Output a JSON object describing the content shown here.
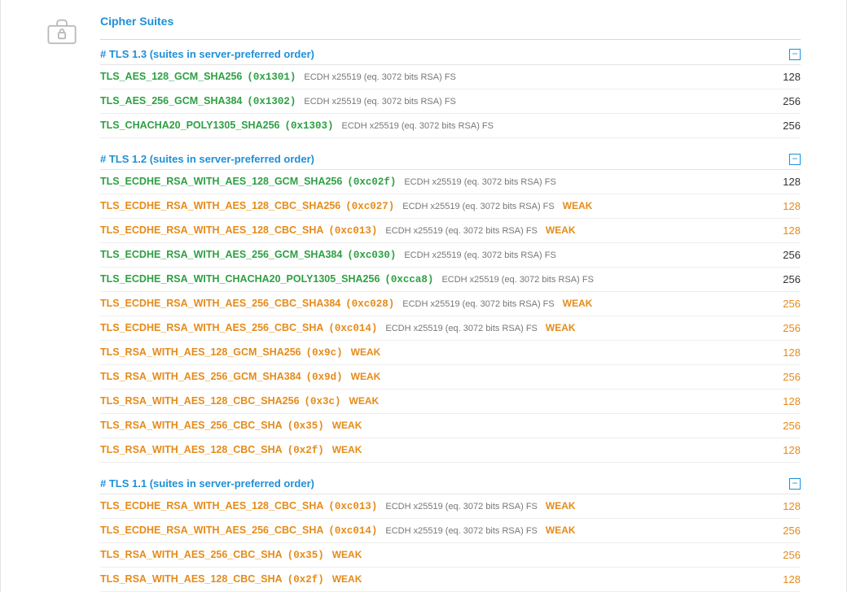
{
  "colors": {
    "link_blue": "#1e90d8",
    "green": "#2ea043",
    "orange": "#e58b1a",
    "text": "#333333",
    "meta_gray": "#777777",
    "border": "#e3e3e3",
    "icon_gray": "#b8b8b8"
  },
  "section_title": "Cipher Suites",
  "weak_label": "WEAK",
  "groups": [
    {
      "id": "tls13",
      "header": "# TLS 1.3 (suites in server-preferred order)",
      "rows": [
        {
          "name": "TLS_AES_128_GCM_SHA256",
          "hex": "(0x1301)",
          "meta": "ECDH x25519 (eq. 3072 bits RSA)   FS",
          "strength": "ok",
          "bits": "128",
          "bits_color": "black"
        },
        {
          "name": "TLS_AES_256_GCM_SHA384",
          "hex": "(0x1302)",
          "meta": "ECDH x25519 (eq. 3072 bits RSA)   FS",
          "strength": "ok",
          "bits": "256",
          "bits_color": "black"
        },
        {
          "name": "TLS_CHACHA20_POLY1305_SHA256",
          "hex": "(0x1303)",
          "meta": "ECDH x25519 (eq. 3072 bits RSA)   FS",
          "strength": "ok",
          "bits": "256",
          "bits_color": "black"
        }
      ]
    },
    {
      "id": "tls12",
      "header": "# TLS 1.2 (suites in server-preferred order)",
      "rows": [
        {
          "name": "TLS_ECDHE_RSA_WITH_AES_128_GCM_SHA256",
          "hex": "(0xc02f)",
          "meta": "ECDH x25519 (eq. 3072 bits RSA)   FS",
          "strength": "ok",
          "bits": "128",
          "bits_color": "black"
        },
        {
          "name": "TLS_ECDHE_RSA_WITH_AES_128_CBC_SHA256",
          "hex": "(0xc027)",
          "meta": "ECDH x25519 (eq. 3072 bits RSA)   FS",
          "strength": "weak",
          "bits": "128",
          "bits_color": "orange"
        },
        {
          "name": "TLS_ECDHE_RSA_WITH_AES_128_CBC_SHA",
          "hex": "(0xc013)",
          "meta": "ECDH x25519 (eq. 3072 bits RSA)   FS",
          "strength": "weak",
          "bits": "128",
          "bits_color": "orange"
        },
        {
          "name": "TLS_ECDHE_RSA_WITH_AES_256_GCM_SHA384",
          "hex": "(0xc030)",
          "meta": "ECDH x25519 (eq. 3072 bits RSA)   FS",
          "strength": "ok",
          "bits": "256",
          "bits_color": "black"
        },
        {
          "name": "TLS_ECDHE_RSA_WITH_CHACHA20_POLY1305_SHA256",
          "hex": "(0xcca8)",
          "meta": "ECDH x25519 (eq. 3072 bits RSA)   FS",
          "strength": "ok",
          "bits": "256",
          "bits_color": "black"
        },
        {
          "name": "TLS_ECDHE_RSA_WITH_AES_256_CBC_SHA384",
          "hex": "(0xc028)",
          "meta": "ECDH x25519 (eq. 3072 bits RSA)   FS",
          "strength": "weak",
          "bits": "256",
          "bits_color": "orange"
        },
        {
          "name": "TLS_ECDHE_RSA_WITH_AES_256_CBC_SHA",
          "hex": "(0xc014)",
          "meta": "ECDH x25519 (eq. 3072 bits RSA)   FS",
          "strength": "weak",
          "bits": "256",
          "bits_color": "orange"
        },
        {
          "name": "TLS_RSA_WITH_AES_128_GCM_SHA256",
          "hex": "(0x9c)",
          "meta": "",
          "strength": "weak",
          "bits": "128",
          "bits_color": "orange"
        },
        {
          "name": "TLS_RSA_WITH_AES_256_GCM_SHA384",
          "hex": "(0x9d)",
          "meta": "",
          "strength": "weak",
          "bits": "256",
          "bits_color": "orange"
        },
        {
          "name": "TLS_RSA_WITH_AES_128_CBC_SHA256",
          "hex": "(0x3c)",
          "meta": "",
          "strength": "weak",
          "bits": "128",
          "bits_color": "orange"
        },
        {
          "name": "TLS_RSA_WITH_AES_256_CBC_SHA",
          "hex": "(0x35)",
          "meta": "",
          "strength": "weak",
          "bits": "256",
          "bits_color": "orange"
        },
        {
          "name": "TLS_RSA_WITH_AES_128_CBC_SHA",
          "hex": "(0x2f)",
          "meta": "",
          "strength": "weak",
          "bits": "128",
          "bits_color": "orange"
        }
      ]
    },
    {
      "id": "tls11",
      "header": "# TLS 1.1 (suites in server-preferred order)",
      "rows": [
        {
          "name": "TLS_ECDHE_RSA_WITH_AES_128_CBC_SHA",
          "hex": "(0xc013)",
          "meta": "ECDH x25519 (eq. 3072 bits RSA)   FS",
          "strength": "weak",
          "bits": "128",
          "bits_color": "orange"
        },
        {
          "name": "TLS_ECDHE_RSA_WITH_AES_256_CBC_SHA",
          "hex": "(0xc014)",
          "meta": "ECDH x25519 (eq. 3072 bits RSA)   FS",
          "strength": "weak",
          "bits": "256",
          "bits_color": "orange"
        },
        {
          "name": "TLS_RSA_WITH_AES_256_CBC_SHA",
          "hex": "(0x35)",
          "meta": "",
          "strength": "weak",
          "bits": "256",
          "bits_color": "orange"
        },
        {
          "name": "TLS_RSA_WITH_AES_128_CBC_SHA",
          "hex": "(0x2f)",
          "meta": "",
          "strength": "weak",
          "bits": "128",
          "bits_color": "orange"
        }
      ]
    }
  ]
}
